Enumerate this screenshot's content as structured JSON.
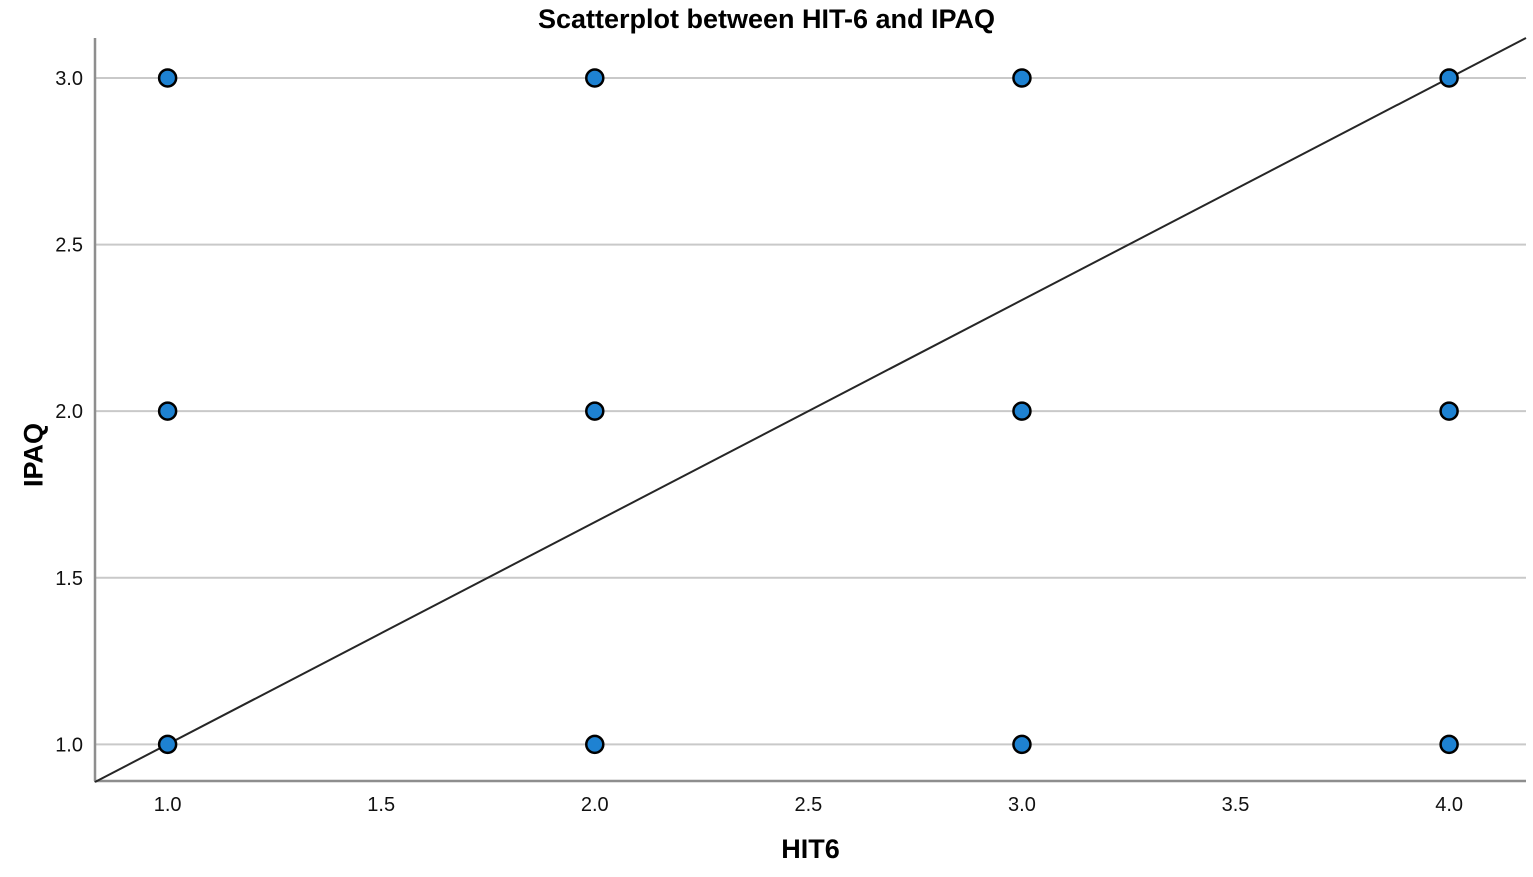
{
  "chart_data": {
    "type": "scatter",
    "title": "Scatterplot between HIT-6 and IPAQ",
    "xlabel": "HIT6",
    "ylabel": "IPAQ",
    "xlim": [
      0.83,
      4.18
    ],
    "ylim": [
      0.89,
      3.12
    ],
    "x_ticks": [
      1.0,
      1.5,
      2.0,
      2.5,
      3.0,
      3.5,
      4.0
    ],
    "x_tick_labels": [
      "1.0",
      "1.5",
      "2.0",
      "2.5",
      "3.0",
      "3.5",
      "4.0"
    ],
    "y_ticks": [
      1.0,
      1.5,
      2.0,
      2.5,
      3.0
    ],
    "y_tick_labels": [
      "1.0",
      "1.5",
      "2.0",
      "2.5",
      "3.0"
    ],
    "grid": "horizontal-only",
    "legend": "none",
    "points": [
      [
        1,
        1
      ],
      [
        2,
        1
      ],
      [
        3,
        1
      ],
      [
        4,
        1
      ],
      [
        1,
        2
      ],
      [
        2,
        2
      ],
      [
        3,
        2
      ],
      [
        4,
        2
      ],
      [
        1,
        3
      ],
      [
        2,
        3
      ],
      [
        3,
        3
      ],
      [
        4,
        3
      ]
    ],
    "fit_line": {
      "x1": 0.83,
      "y1": 0.887,
      "x2": 4.18,
      "y2": 3.12
    },
    "colors": {
      "point_fill": "#1e82d2",
      "point_stroke": "#000000",
      "gridline": "#c9c9c9",
      "axis": "#8e8e8e",
      "fit_line": "#262626",
      "tick_text": "#111111",
      "background": "#ffffff"
    }
  }
}
